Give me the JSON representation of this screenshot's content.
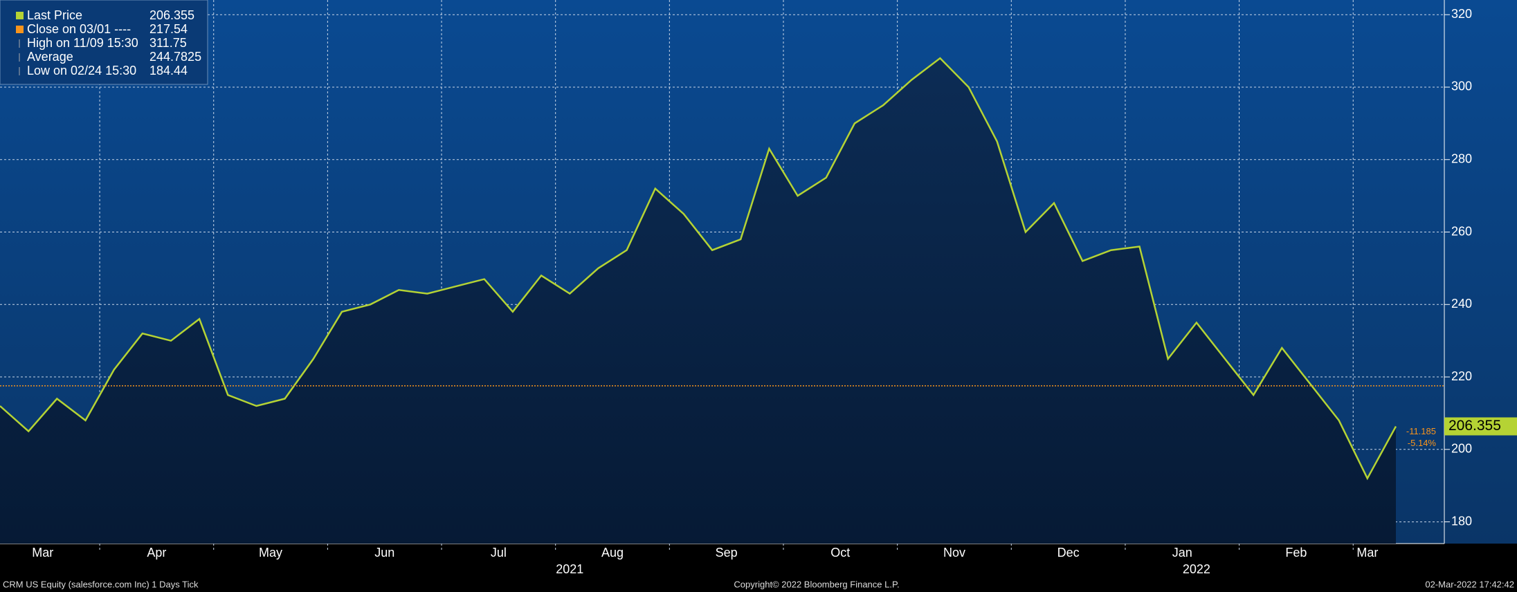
{
  "chart_data": {
    "type": "line",
    "categories": [
      "Mar",
      null,
      null,
      null,
      "Apr",
      null,
      null,
      null,
      "May",
      null,
      null,
      null,
      "Jun",
      null,
      null,
      null,
      "Jul",
      null,
      null,
      null,
      "Aug",
      null,
      null,
      null,
      "Sep",
      null,
      null,
      null,
      "Oct",
      null,
      null,
      null,
      "Nov",
      null,
      null,
      null,
      "Dec",
      null,
      null,
      null,
      "Jan",
      null,
      null,
      null,
      "Feb",
      null,
      null,
      null,
      "Mar",
      null
    ],
    "year_labels": [
      {
        "index": 20,
        "label": "2021"
      },
      {
        "index": 42,
        "label": "2022"
      }
    ],
    "series": [
      {
        "name": "Last Price",
        "color": "#b5d334",
        "values": [
          212,
          205,
          214,
          208,
          222,
          232,
          230,
          236,
          215,
          212,
          214,
          225,
          238,
          240,
          244,
          243,
          245,
          247,
          238,
          248,
          243,
          250,
          255,
          272,
          265,
          255,
          258,
          283,
          270,
          275,
          290,
          295,
          302,
          308,
          300,
          285,
          260,
          268,
          252,
          255,
          256,
          225,
          235,
          225,
          215,
          228,
          218,
          208,
          192,
          206.355
        ]
      }
    ],
    "legend": [
      {
        "label": "Last Price",
        "value": 206.355,
        "color": "#b5d334"
      },
      {
        "label": "Close on 03/01 ----",
        "value": 217.54,
        "color": "#f7941d"
      },
      {
        "label": "High on 11/09 15:30",
        "value": 311.75
      },
      {
        "label": "Average",
        "value": 244.7825
      },
      {
        "label": "Low on 02/24 15:30",
        "value": 184.44
      }
    ],
    "close_line": {
      "value": 217.54,
      "color": "#f7941d"
    },
    "last_tag": 206.355,
    "change_labels": [
      "-11.185",
      "-5.14%"
    ],
    "ylim": [
      174,
      324
    ],
    "yticks": [
      180,
      200,
      220,
      240,
      260,
      280,
      300,
      320
    ],
    "grid": true,
    "footer": {
      "left": "CRM US Equity (salesforce.com Inc) 1 Days  Tick",
      "center": "Copyright© 2022 Bloomberg Finance L.P.",
      "right": "02-Mar-2022 17:42:42"
    }
  }
}
